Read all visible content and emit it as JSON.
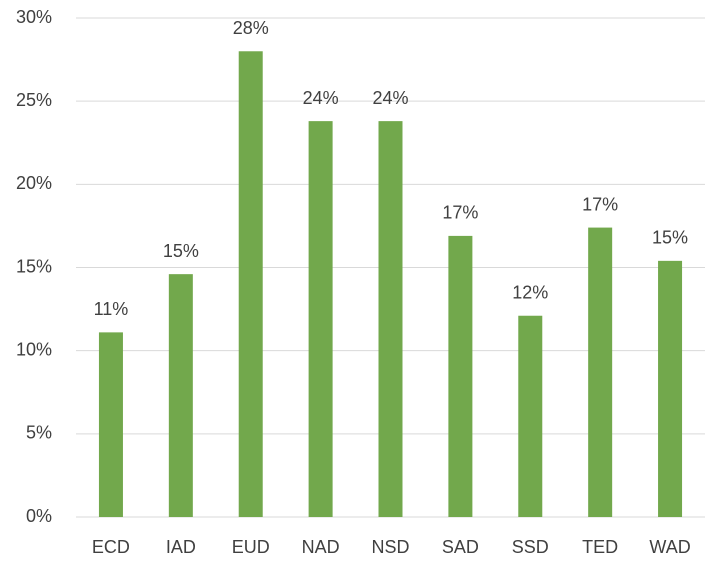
{
  "chart_data": {
    "type": "bar",
    "categories": [
      "ECD",
      "IAD",
      "EUD",
      "NAD",
      "NSD",
      "SAD",
      "SSD",
      "TED",
      "WAD"
    ],
    "values": [
      11.1,
      14.6,
      28.0,
      23.8,
      23.8,
      16.9,
      12.1,
      17.4,
      15.4
    ],
    "value_labels": [
      "11%",
      "15%",
      "28%",
      "24%",
      "24%",
      "17%",
      "12%",
      "17%",
      "15%"
    ],
    "color": "#72a84c",
    "ylim": [
      0,
      30
    ],
    "yticks": [
      {
        "value": 0,
        "label": "0%"
      },
      {
        "value": 5,
        "label": "5%"
      },
      {
        "value": 10,
        "label": "10%"
      },
      {
        "value": 15,
        "label": "15%"
      },
      {
        "value": 20,
        "label": "20%"
      },
      {
        "value": 25,
        "label": "25%"
      },
      {
        "value": 30,
        "label": "30%"
      }
    ],
    "grid": true
  }
}
